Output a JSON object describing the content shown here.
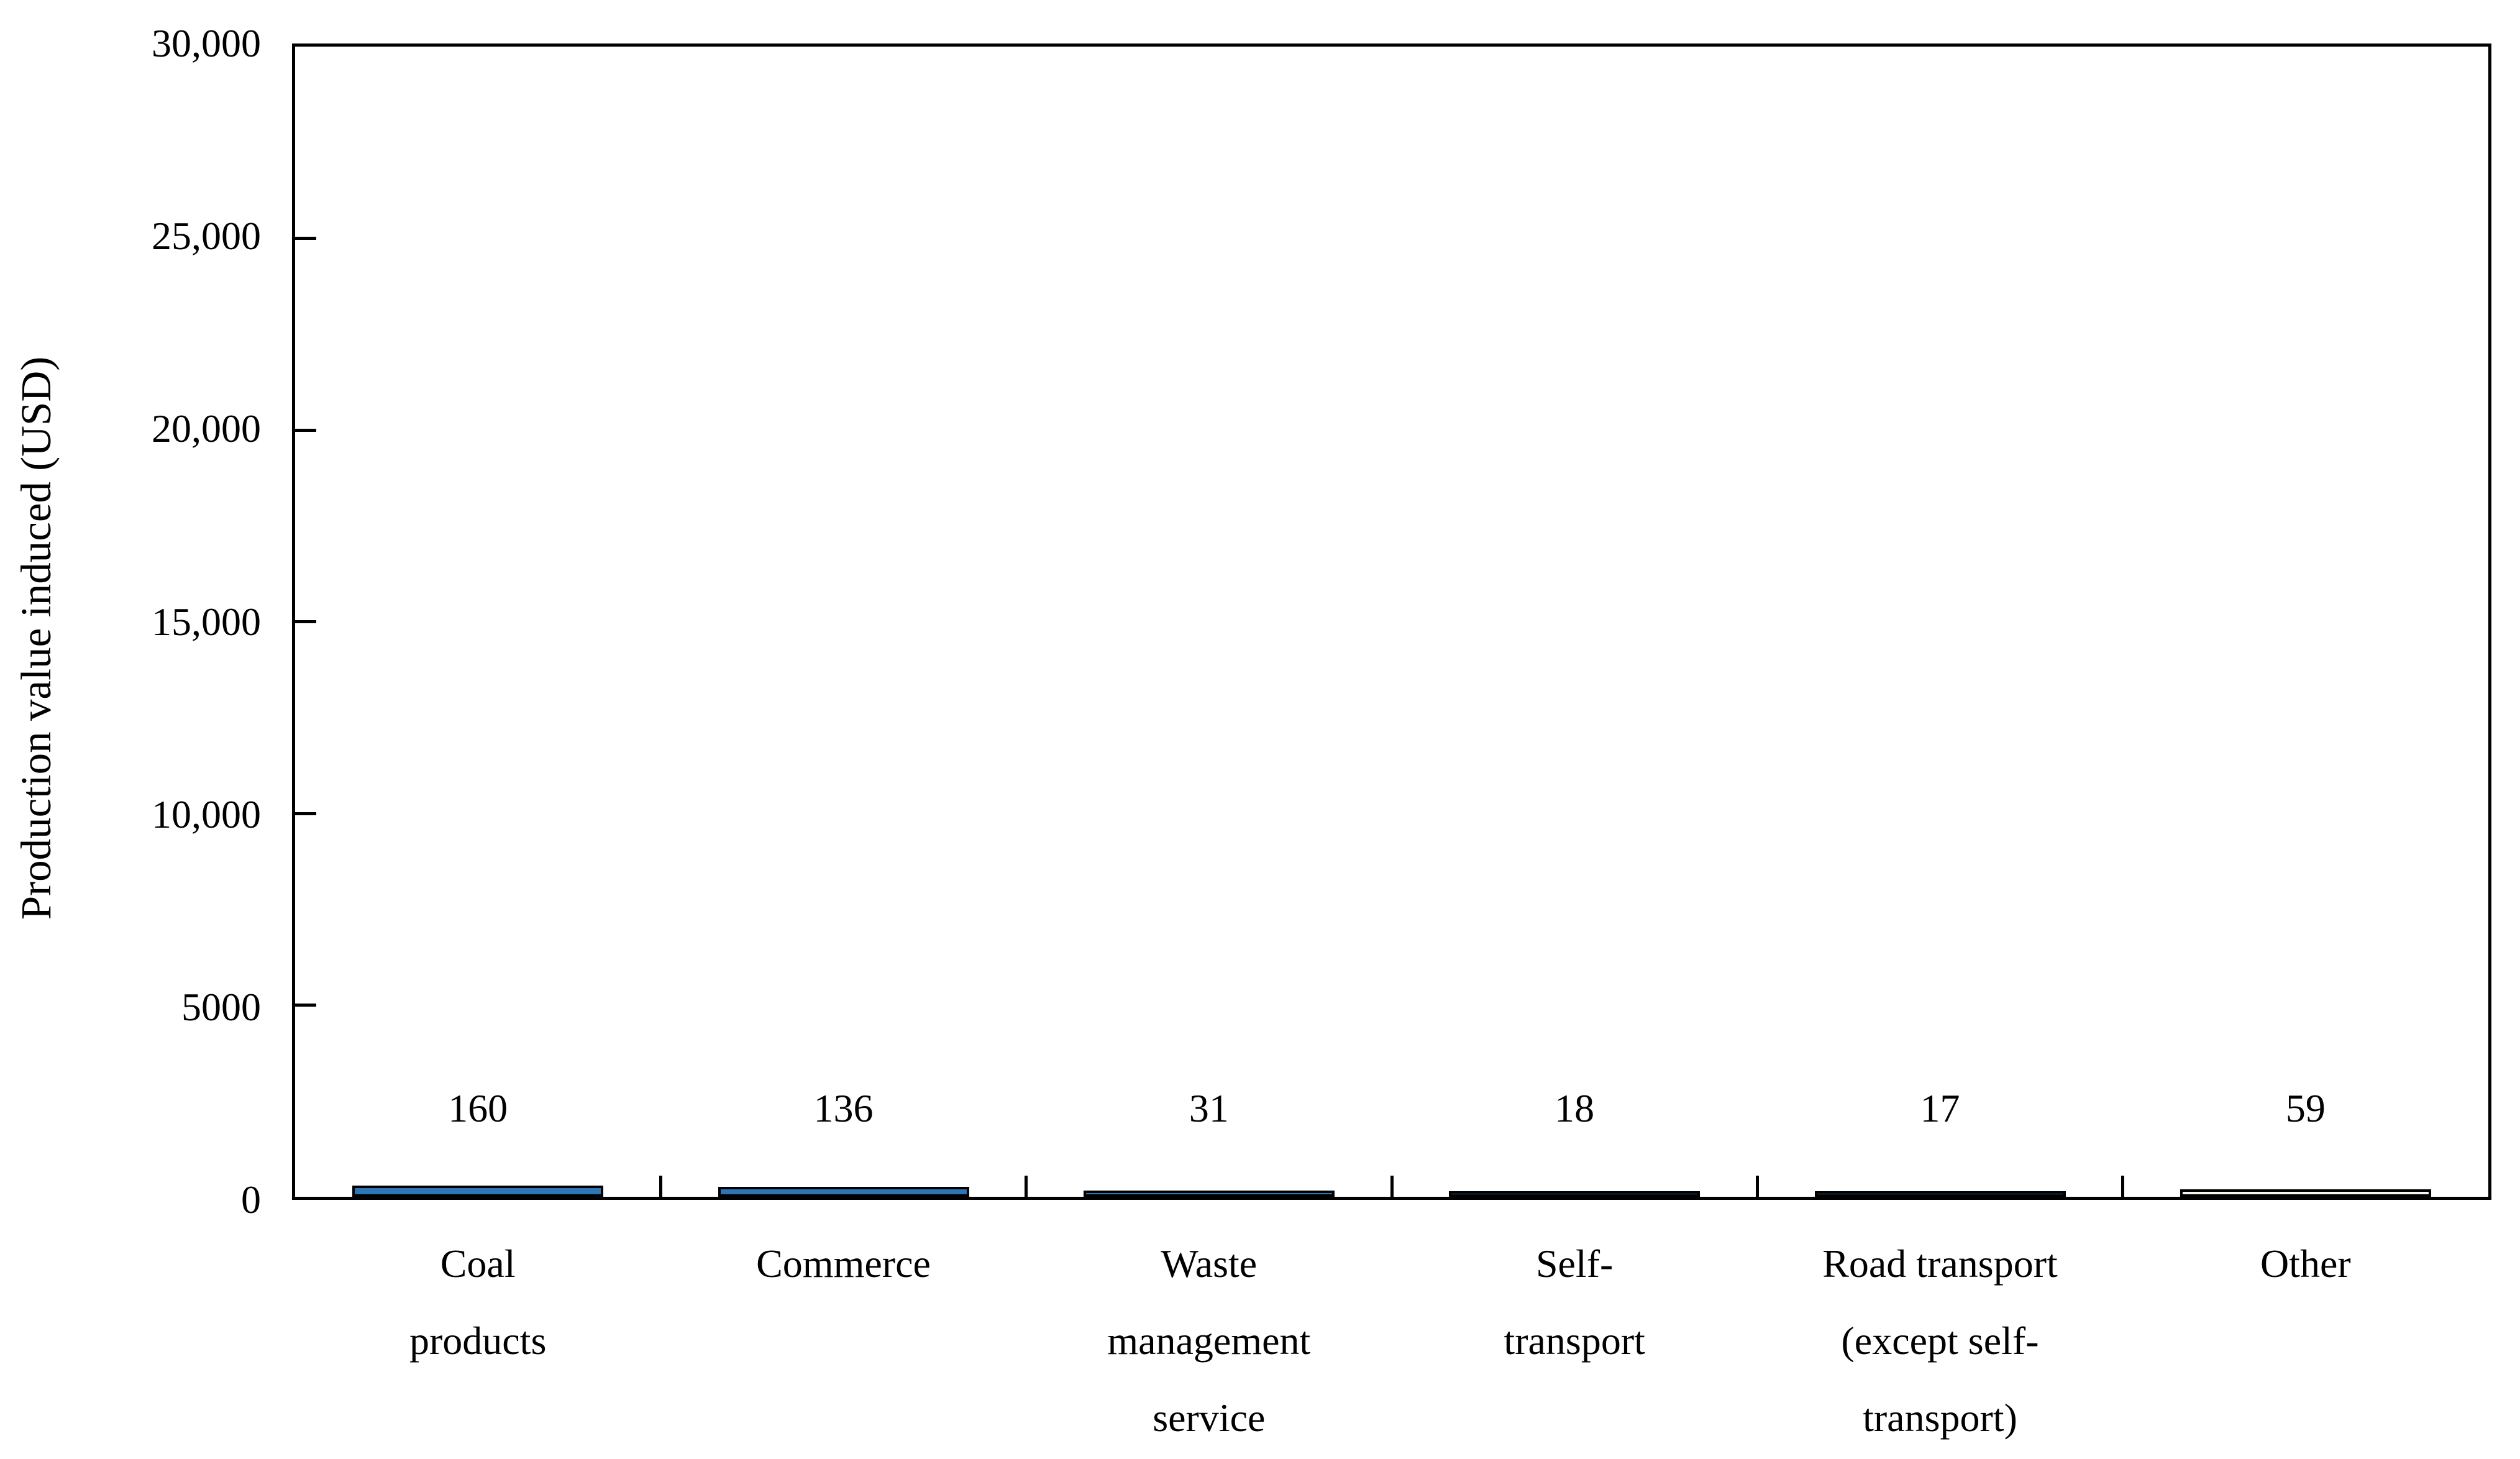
{
  "chart_data": {
    "type": "bar",
    "title": "",
    "xlabel": "",
    "ylabel": "Production value induced (USD)",
    "ylim": [
      0,
      30000
    ],
    "y_tick_values": [
      0,
      5000,
      10000,
      15000,
      20000,
      25000,
      30000
    ],
    "y_tick_labels": [
      "0",
      "5000",
      "10,000",
      "15,000",
      "20,000",
      "25,000",
      "30,000"
    ],
    "grid": false,
    "legend_position": "none",
    "tick_style": "inside",
    "categories": [
      "Coal products",
      "Commerce",
      "Waste management service",
      "Self-transport",
      "Road transport (except self-transport)",
      "Other"
    ],
    "category_label_lines": [
      [
        "Coal",
        "products"
      ],
      [
        "Commerce"
      ],
      [
        "Waste",
        "management",
        "service"
      ],
      [
        "Self-",
        "transport"
      ],
      [
        "Road transport",
        "(except self-",
        "transport)"
      ],
      [
        "Other"
      ]
    ],
    "values": [
      160,
      136,
      31,
      18,
      17,
      59
    ],
    "data_labels": [
      "160",
      "136",
      "31",
      "18",
      "17",
      "59"
    ],
    "colors": {
      "bar_fills": [
        "#2E75B6",
        "#2E75B6",
        "#2E75B6",
        "#2E75B6",
        "#2E75B6",
        "#F7F6EE"
      ],
      "bar_border": "#000000",
      "axis": "#000000",
      "text": "#000000",
      "background": "#FFFFFF"
    }
  }
}
